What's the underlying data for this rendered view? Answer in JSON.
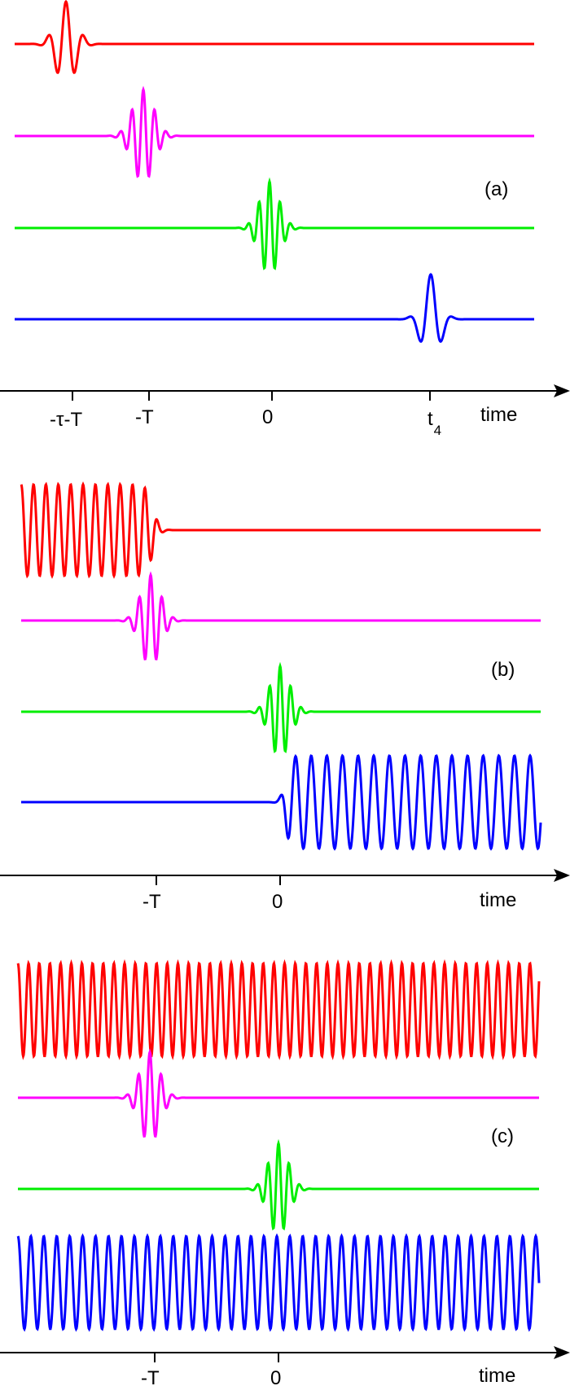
{
  "panels": [
    {
      "id": "a",
      "tag": "(a)",
      "axis_label": "time",
      "ticks": [
        {
          "text": "-τ-T",
          "sub": ""
        },
        {
          "text": "-T",
          "sub": ""
        },
        {
          "text": "0",
          "sub": ""
        },
        {
          "text": "t",
          "sub": "4"
        }
      ]
    },
    {
      "id": "b",
      "tag": "(b)",
      "axis_label": "time",
      "ticks": [
        {
          "text": "-T",
          "sub": ""
        },
        {
          "text": "0",
          "sub": ""
        }
      ]
    },
    {
      "id": "c",
      "tag": "(c)",
      "axis_label": "time",
      "ticks": [
        {
          "text": "-T",
          "sub": ""
        },
        {
          "text": "0",
          "sub": ""
        }
      ]
    }
  ],
  "colors": {
    "trace1": "#ff0000",
    "trace2": "#ff00ff",
    "trace3": "#00ee00",
    "trace4": "#0000ff",
    "axis": "#000000"
  }
}
